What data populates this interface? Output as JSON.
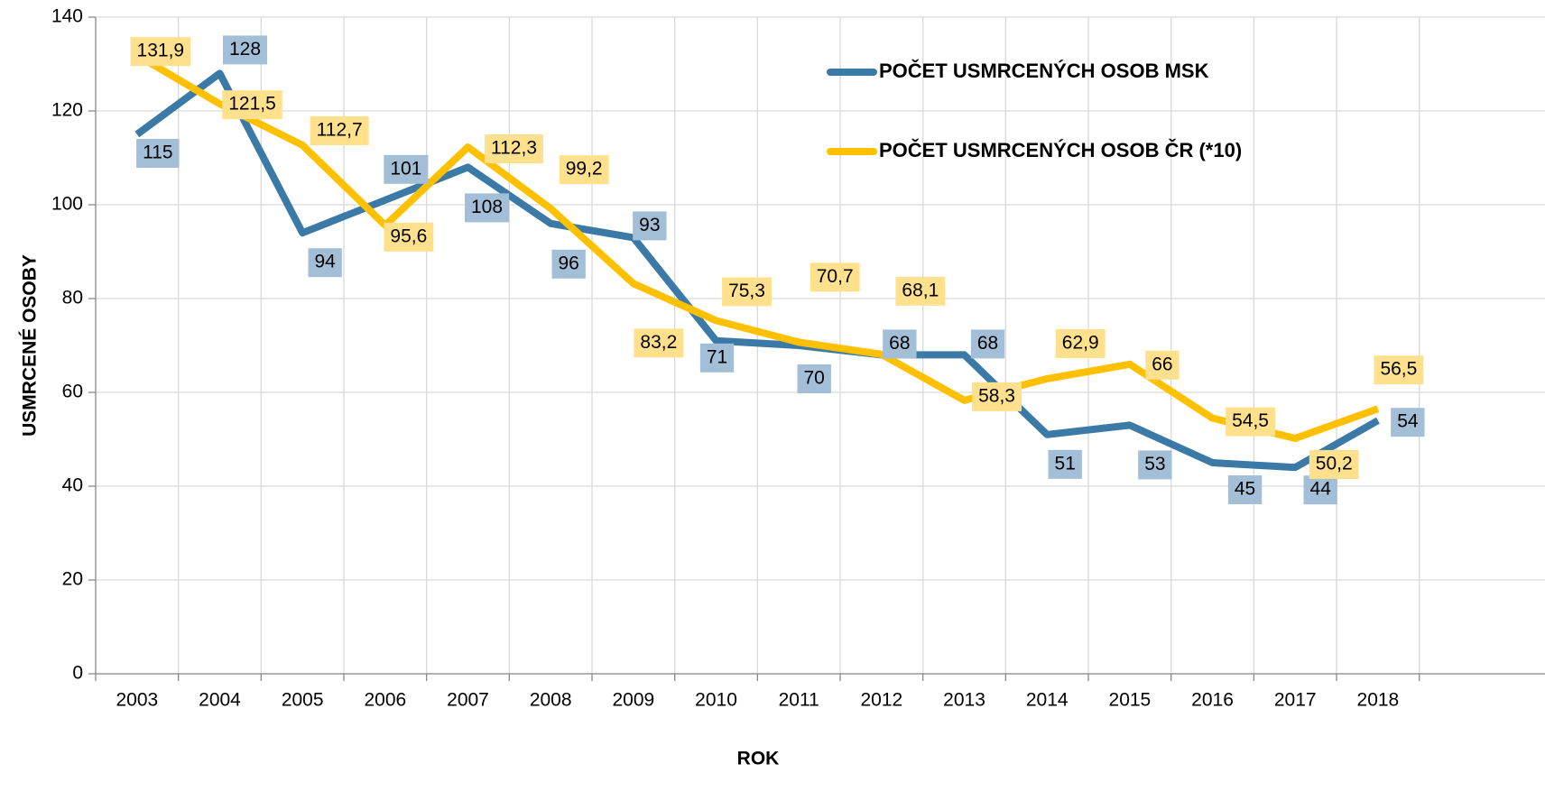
{
  "chart_data": {
    "type": "line",
    "x_label": "ROK",
    "y_label": "USMRCENÉ OSOBY",
    "categories": [
      "2003",
      "2004",
      "2005",
      "2006",
      "2007",
      "2008",
      "2009",
      "2010",
      "2011",
      "2012",
      "2013",
      "2014",
      "2015",
      "2016",
      "2017",
      "2018"
    ],
    "series": [
      {
        "name": "POČET USMRCENÝCH OSOB MSK",
        "color": "#3b7aa6",
        "label_color": "#a3bfd8",
        "values": [
          115,
          128,
          94,
          101,
          108,
          96,
          93,
          71,
          70,
          68,
          68,
          51,
          53,
          45,
          44,
          54
        ]
      },
      {
        "name": "POČET USMRCENÝCH OSOB ČR (*10)",
        "color": "#ffc000",
        "label_color": "#ffe08c",
        "values": [
          131.9,
          121.5,
          112.7,
          95.6,
          112.3,
          99.2,
          83.2,
          75.3,
          70.7,
          68.1,
          58.3,
          62.9,
          66,
          54.5,
          50.2,
          56.5
        ],
        "value_labels": [
          "131,9",
          "121,5",
          "112,7",
          "95,6",
          "112,3",
          "99,2",
          "83,2",
          "75,3",
          "70,7",
          "68,1",
          "58,3",
          "62,9",
          "66",
          "54,5",
          "50,2",
          "56,5"
        ]
      }
    ],
    "ylim": [
      0,
      140
    ],
    "yticks": [
      0,
      20,
      40,
      60,
      80,
      100,
      120,
      140
    ],
    "grid": true,
    "legend": "upper right"
  }
}
